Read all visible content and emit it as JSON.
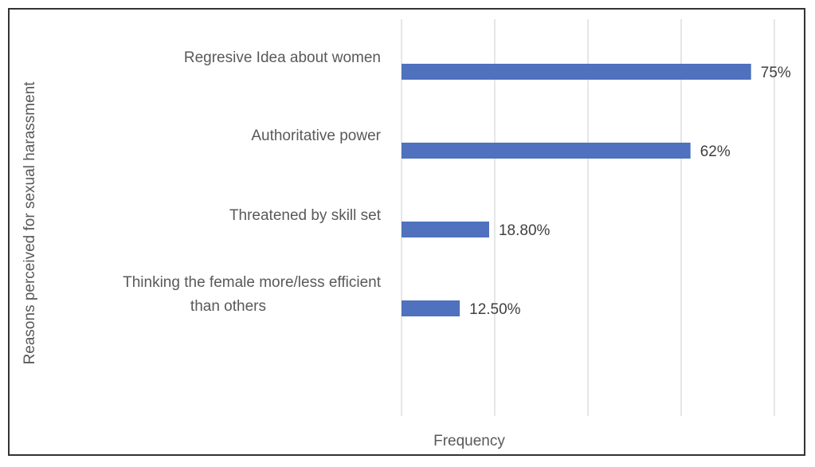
{
  "chart_data": {
    "type": "bar",
    "orientation": "horizontal",
    "categories": [
      "Regresive Idea about women",
      "Authoritative power",
      "Threatened by skill set",
      "Thinking the female more/less efficient than others"
    ],
    "category_lines": [
      [
        "Regresive Idea about women"
      ],
      [
        "Authoritative power"
      ],
      [
        "Threatened by skill set"
      ],
      [
        "Thinking the female more/less efficient",
        "than others"
      ]
    ],
    "values": [
      75,
      62,
      18.8,
      12.5
    ],
    "value_labels": [
      "75%",
      "62%",
      "18.80%",
      "12.50%"
    ],
    "xlabel": "Frequency",
    "ylabel": "Reasons perceived for sexual harassment",
    "xlim": [
      0,
      80
    ],
    "gridlines_at": [
      0,
      20,
      40,
      60,
      80
    ],
    "grid": true,
    "tick_labels_shown": false,
    "legend": "none",
    "bar_color": "#4f71be",
    "gridline_color": "#d9d9d9"
  }
}
